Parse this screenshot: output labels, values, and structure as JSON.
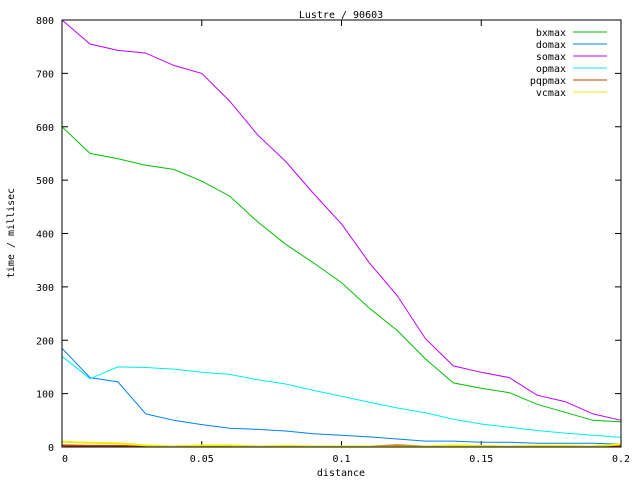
{
  "chart_data": {
    "type": "line",
    "title": "Lustre / 90603",
    "xlabel": "distance",
    "ylabel": "time / millisec",
    "xlim": [
      0,
      0.2
    ],
    "ylim": [
      0,
      800
    ],
    "xticks": [
      "0",
      "0.05",
      "0.1",
      "0.15",
      "0.2"
    ],
    "xtick_values": [
      0,
      0.05,
      0.1,
      0.15,
      0.2
    ],
    "yticks": [
      "0",
      "100",
      "200",
      "300",
      "400",
      "500",
      "600",
      "700",
      "800"
    ],
    "ytick_values": [
      0,
      100,
      200,
      300,
      400,
      500,
      600,
      700,
      800
    ],
    "grid": false,
    "legend_position": "top-right",
    "x": [
      0,
      0.01,
      0.02,
      0.03,
      0.04,
      0.05,
      0.06,
      0.07,
      0.08,
      0.09,
      0.1,
      0.11,
      0.12,
      0.13,
      0.14,
      0.15,
      0.16,
      0.17,
      0.18,
      0.19,
      0.2
    ],
    "series": [
      {
        "name": "bxmax",
        "color": "#00c000",
        "values": [
          600,
          550,
          540,
          528,
          520,
          498,
          470,
          422,
          380,
          345,
          308,
          260,
          218,
          165,
          120,
          110,
          102,
          80,
          65,
          50,
          47
        ]
      },
      {
        "name": "domax",
        "color": "#0080ff",
        "values": [
          185,
          130,
          122,
          62,
          50,
          42,
          35,
          33,
          30,
          25,
          22,
          19,
          15,
          11,
          11,
          9,
          9,
          7,
          7,
          7,
          5
        ]
      },
      {
        "name": "somax",
        "color": "#c000ff",
        "values": [
          800,
          755,
          743,
          738,
          715,
          700,
          648,
          585,
          535,
          475,
          418,
          345,
          283,
          203,
          152,
          140,
          130,
          97,
          85,
          62,
          50
        ]
      },
      {
        "name": "opmax",
        "color": "#00eeee",
        "values": [
          170,
          128,
          150,
          149,
          146,
          140,
          136,
          126,
          118,
          106,
          95,
          84,
          73,
          64,
          52,
          43,
          37,
          31,
          26,
          22,
          18
        ]
      },
      {
        "name": "pqpmax",
        "color": "#c04000",
        "values": [
          3,
          2,
          2,
          1,
          1,
          2,
          2,
          1,
          1,
          1,
          1,
          1,
          3,
          1,
          1,
          1,
          1,
          1,
          1,
          1,
          2
        ]
      },
      {
        "name": "vcmax",
        "color": "#eeee00",
        "values": [
          10,
          8,
          7,
          3,
          1,
          3,
          3,
          1,
          2,
          1,
          1,
          1,
          1,
          1,
          3,
          2,
          1,
          2,
          2,
          1,
          5
        ]
      }
    ]
  }
}
